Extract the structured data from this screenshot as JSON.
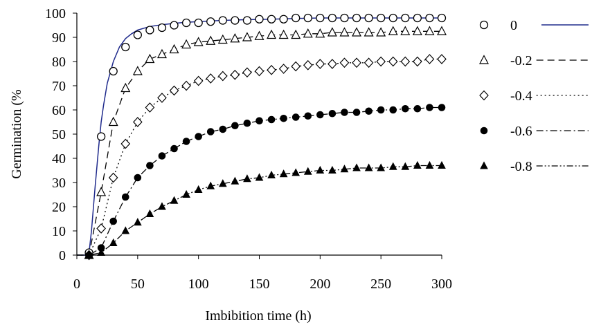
{
  "chart_data": {
    "type": "line",
    "title": "",
    "xlabel": "Imbibition time (h)",
    "ylabel": "Germination (%",
    "xlim": [
      0,
      300
    ],
    "ylim": [
      0,
      100
    ],
    "xticks": [
      0,
      50,
      100,
      150,
      200,
      250,
      300
    ],
    "yticks": [
      0,
      10,
      20,
      30,
      40,
      50,
      60,
      70,
      80,
      90,
      100
    ],
    "grid": false,
    "legend_position": "right",
    "series": [
      {
        "name": "0",
        "marker": "open-circle",
        "line": "solid",
        "line_color": "#1f2a8c",
        "x": [
          10,
          20,
          30,
          40,
          50,
          60,
          70,
          80,
          90,
          100,
          110,
          120,
          130,
          140,
          150,
          160,
          170,
          180,
          190,
          200,
          210,
          220,
          230,
          240,
          250,
          260,
          270,
          280,
          290,
          300
        ],
        "y": [
          1,
          49,
          76,
          86,
          91,
          93,
          94,
          95,
          96,
          96,
          96.5,
          97,
          97,
          97,
          97.5,
          97.5,
          97.5,
          98,
          98,
          98,
          98,
          98,
          98,
          98,
          98,
          98,
          98,
          98,
          98,
          98
        ],
        "curve_x": [
          0,
          8,
          10,
          12,
          15,
          18,
          20,
          22,
          25,
          30,
          35,
          40,
          45,
          50,
          60,
          70,
          80,
          90,
          100,
          120,
          140,
          160,
          180,
          200,
          250,
          300
        ],
        "curve_y": [
          0,
          0,
          1,
          10,
          28,
          45,
          55,
          62,
          71,
          80,
          86,
          89.5,
          91.5,
          93,
          94.5,
          95.2,
          95.8,
          96.2,
          96.5,
          97,
          97.3,
          97.5,
          97.8,
          98,
          98,
          98
        ]
      },
      {
        "name": "-0.2",
        "marker": "open-triangle",
        "line": "dashed",
        "line_color": "#000000",
        "x": [
          10,
          20,
          30,
          40,
          50,
          60,
          70,
          80,
          90,
          100,
          110,
          120,
          130,
          140,
          150,
          160,
          170,
          180,
          190,
          200,
          210,
          220,
          230,
          240,
          250,
          260,
          270,
          280,
          290,
          300
        ],
        "y": [
          0,
          26,
          55,
          69,
          76,
          81,
          83,
          85,
          87,
          88,
          88.5,
          89,
          89.5,
          90,
          90.5,
          91,
          91,
          91,
          91.5,
          91.5,
          92,
          92,
          92,
          92,
          92,
          92.5,
          92.5,
          92.5,
          92.5,
          92.5
        ]
      },
      {
        "name": "-0.4",
        "marker": "open-diamond",
        "line": "dotted",
        "line_color": "#000000",
        "x": [
          10,
          20,
          30,
          40,
          50,
          60,
          70,
          80,
          90,
          100,
          110,
          120,
          130,
          140,
          150,
          160,
          170,
          180,
          190,
          200,
          210,
          220,
          230,
          240,
          250,
          260,
          270,
          280,
          290,
          300
        ],
        "y": [
          0,
          11,
          32,
          46,
          55,
          61,
          65,
          68,
          70,
          72,
          73,
          74,
          74.5,
          75.5,
          76,
          76.5,
          77,
          78,
          78.5,
          79,
          79,
          79.5,
          79.5,
          79.5,
          80,
          80,
          80,
          80,
          81,
          81
        ]
      },
      {
        "name": "-0.6",
        "marker": "filled-circle",
        "line": "dash-dot",
        "line_color": "#000000",
        "x": [
          10,
          20,
          30,
          40,
          50,
          60,
          70,
          80,
          90,
          100,
          110,
          120,
          130,
          140,
          150,
          160,
          170,
          180,
          190,
          200,
          210,
          220,
          230,
          240,
          250,
          260,
          270,
          280,
          290,
          300
        ],
        "y": [
          0,
          3,
          14,
          24,
          32,
          37,
          41,
          44,
          47,
          49,
          51,
          52,
          53.5,
          54.5,
          55.5,
          56,
          56.5,
          57,
          57.5,
          58,
          58.5,
          59,
          59,
          59.5,
          60,
          60,
          60.5,
          60.5,
          61,
          61
        ]
      },
      {
        "name": "-0.8",
        "marker": "filled-triangle",
        "line": "dash-dot-dot",
        "line_color": "#000000",
        "x": [
          10,
          20,
          30,
          40,
          50,
          60,
          70,
          80,
          90,
          100,
          110,
          120,
          130,
          140,
          150,
          160,
          170,
          180,
          190,
          200,
          210,
          220,
          230,
          240,
          250,
          260,
          270,
          280,
          290,
          300
        ],
        "y": [
          0,
          1,
          5,
          10,
          13.5,
          17,
          20,
          22.5,
          25,
          27,
          28.5,
          29.5,
          30.5,
          31.5,
          32,
          33,
          33.5,
          34,
          34.5,
          35,
          35,
          35.5,
          36,
          36,
          36,
          36.5,
          36.5,
          37,
          37,
          37
        ]
      }
    ]
  }
}
